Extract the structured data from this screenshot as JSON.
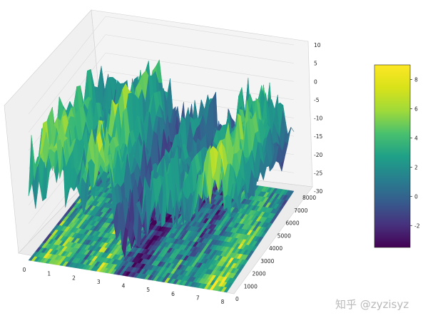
{
  "chart_data": {
    "type": "surface3d",
    "title": "",
    "xlabel": "",
    "ylabel": "",
    "zlabel": "",
    "x_ticks": [
      "0",
      "1",
      "2",
      "3",
      "4",
      "5",
      "6",
      "7",
      "8"
    ],
    "y_ticks": [
      "0",
      "1000",
      "2000",
      "3000",
      "4000",
      "5000",
      "6000",
      "7000",
      "8000"
    ],
    "z_ticks": [
      "10",
      "5",
      "0",
      "-5",
      "-10",
      "-15",
      "-20",
      "-25",
      "-30"
    ],
    "xlim": [
      0,
      8
    ],
    "ylim": [
      0,
      8000
    ],
    "zlim": [
      -30,
      10
    ],
    "surface_z_range": [
      -25,
      8
    ],
    "contour_projection_offset": -30,
    "colormap": "viridis",
    "colorbar": {
      "ticks": [
        "8",
        "6",
        "4",
        "2",
        "0",
        "-2"
      ],
      "range": [
        -3.5,
        9
      ],
      "placement": "right"
    },
    "grid": true
  },
  "watermark": "知乎 @zyzisyz",
  "colors": {
    "viridis_low": "#440154",
    "viridis_mid": "#21918c",
    "viridis_high": "#fde725",
    "pane": "#f2f2f2",
    "grid": "#d8d8d8"
  }
}
